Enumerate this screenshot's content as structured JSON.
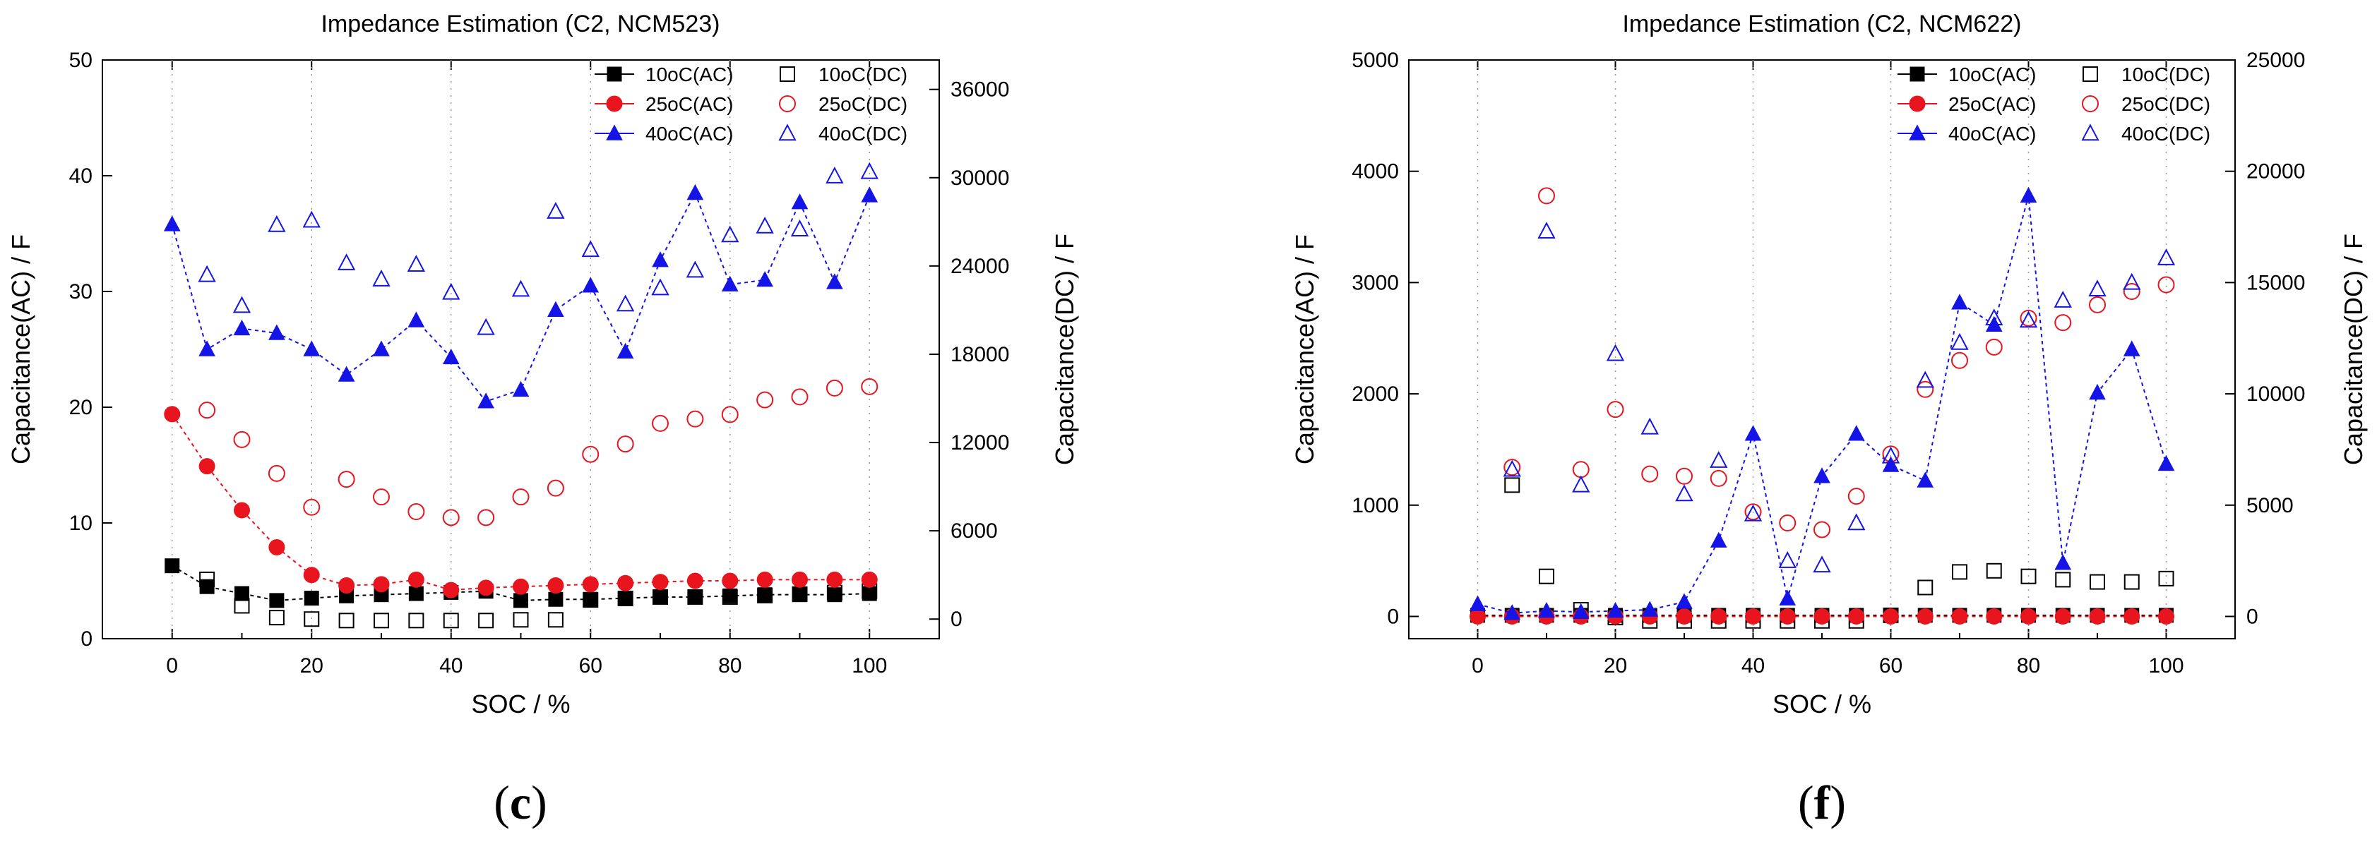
{
  "colors": {
    "black": "#000000",
    "red": "#e8141e",
    "blue": "#1414e6"
  },
  "chart_data": [
    {
      "type": "scatter",
      "panel": "(c)",
      "panel_letter": "c",
      "title": "Impedance Estimation (C2, NCM523)",
      "xlabel": "SOC / %",
      "ylabel_left": "Capacitance(AC) / F",
      "ylabel_right": "Capacitance(DC) / F",
      "xlim": [
        -10,
        110
      ],
      "ylim_left": [
        0,
        50
      ],
      "ylim_right": [
        -1333,
        38000
      ],
      "xticks": [
        0,
        20,
        40,
        60,
        80,
        100
      ],
      "yticks_left": [
        0,
        10,
        20,
        30,
        40,
        50
      ],
      "yticks_right": [
        0,
        6000,
        12000,
        18000,
        24000,
        30000,
        36000
      ],
      "legend_position": "top-right",
      "x": [
        0,
        5,
        10,
        15,
        20,
        25,
        30,
        35,
        40,
        45,
        50,
        55,
        60,
        65,
        70,
        75,
        80,
        85,
        90,
        95,
        100
      ],
      "series": [
        {
          "name": "10oC(AC)",
          "axis": "left",
          "color": "black",
          "marker": "square",
          "filled": true,
          "line": true,
          "values": [
            6.3,
            4.5,
            3.9,
            3.3,
            3.5,
            3.7,
            3.8,
            3.9,
            4.0,
            4.1,
            3.3,
            3.4,
            3.4,
            3.5,
            3.6,
            3.6,
            3.7,
            3.8,
            3.8,
            3.8,
            3.9
          ]
        },
        {
          "name": "10oC(DC)",
          "axis": "right",
          "color": "black",
          "marker": "square",
          "filled": false,
          "line": false,
          "values": [
            null,
            2700,
            900,
            100,
            0,
            -100,
            -100,
            -100,
            -100,
            -100,
            -50,
            -50,
            1300,
            1400,
            1500,
            1500,
            1500,
            1600,
            1700,
            1800,
            1900
          ]
        },
        {
          "name": "25oC(AC)",
          "axis": "left",
          "color": "red",
          "marker": "circle",
          "filled": true,
          "line": true,
          "values": [
            19.4,
            14.9,
            11.1,
            7.9,
            5.5,
            4.6,
            4.7,
            5.1,
            4.2,
            4.4,
            4.5,
            4.6,
            4.7,
            4.8,
            4.9,
            5.0,
            5.0,
            5.1,
            5.1,
            5.1,
            5.1
          ]
        },
        {
          "name": "25oC(DC)",
          "axis": "right",
          "color": "red",
          "marker": "circle",
          "filled": false,
          "line": false,
          "values": [
            null,
            14200,
            12200,
            9900,
            7600,
            9500,
            8300,
            7300,
            6900,
            6900,
            8300,
            8900,
            11200,
            11900,
            13300,
            13600,
            13900,
            14900,
            15100,
            15700,
            15800
          ]
        },
        {
          "name": "40oC(AC)",
          "axis": "left",
          "color": "blue",
          "marker": "triangle",
          "filled": true,
          "line": true,
          "values": [
            35.8,
            25.0,
            26.8,
            26.4,
            25.0,
            22.8,
            25.0,
            27.5,
            24.3,
            20.5,
            21.5,
            28.4,
            30.5,
            24.8,
            32.7,
            38.5,
            30.6,
            31.0,
            37.7,
            30.8,
            38.3
          ]
        },
        {
          "name": "40oC(DC)",
          "axis": "right",
          "color": "blue",
          "marker": "triangle",
          "filled": false,
          "line": false,
          "values": [
            null,
            23400,
            21300,
            26800,
            27100,
            24200,
            23100,
            24100,
            22200,
            19800,
            22400,
            27700,
            25100,
            21400,
            22500,
            23700,
            26100,
            26700,
            26500,
            30100,
            30400
          ]
        }
      ]
    },
    {
      "type": "scatter",
      "panel": "(f)",
      "panel_letter": "f",
      "title": "Impedance Estimation (C2, NCM622)",
      "xlabel": "SOC / %",
      "ylabel_left": "Capacitance(AC) / F",
      "ylabel_right": "Capacitance(DC) / F",
      "xlim": [
        -10,
        110
      ],
      "ylim_left": [
        -200,
        5000
      ],
      "ylim_right": [
        -1000,
        25000
      ],
      "xticks": [
        0,
        20,
        40,
        60,
        80,
        100
      ],
      "yticks_left": [
        0,
        1000,
        2000,
        3000,
        4000,
        5000
      ],
      "yticks_right": [
        0,
        5000,
        10000,
        15000,
        20000,
        25000
      ],
      "legend_position": "top-right",
      "x": [
        0,
        5,
        10,
        15,
        20,
        25,
        30,
        35,
        40,
        45,
        50,
        55,
        60,
        65,
        70,
        75,
        80,
        85,
        90,
        95,
        100
      ],
      "series": [
        {
          "name": "10oC(AC)",
          "axis": "left",
          "color": "black",
          "marker": "square",
          "filled": true,
          "line": true,
          "values": [
            10,
            10,
            10,
            10,
            10,
            10,
            10,
            10,
            10,
            10,
            10,
            10,
            10,
            10,
            10,
            10,
            10,
            10,
            10,
            10,
            10
          ]
        },
        {
          "name": "10oC(DC)",
          "axis": "right",
          "color": "black",
          "marker": "square",
          "filled": false,
          "line": false,
          "values": [
            null,
            5900,
            1800,
            300,
            -50,
            -200,
            -200,
            -200,
            -200,
            -200,
            -200,
            -200,
            50,
            1300,
            2000,
            2050,
            1800,
            1650,
            1550,
            1550,
            1700
          ]
        },
        {
          "name": "25oC(AC)",
          "axis": "left",
          "color": "red",
          "marker": "circle",
          "filled": true,
          "line": true,
          "values": [
            0,
            0,
            0,
            0,
            0,
            0,
            0,
            0,
            0,
            0,
            0,
            0,
            0,
            0,
            0,
            0,
            0,
            0,
            0,
            0,
            0
          ]
        },
        {
          "name": "25oC(DC)",
          "axis": "right",
          "color": "red",
          "marker": "circle",
          "filled": false,
          "line": false,
          "values": [
            null,
            6700,
            18900,
            6600,
            9300,
            6400,
            6300,
            6200,
            4700,
            4200,
            3900,
            5400,
            7300,
            10200,
            11500,
            12100,
            13400,
            13200,
            14000,
            14600,
            14900
          ]
        },
        {
          "name": "40oC(AC)",
          "axis": "left",
          "color": "blue",
          "marker": "triangle",
          "filled": true,
          "line": true,
          "values": [
            110,
            30,
            50,
            40,
            50,
            60,
            130,
            680,
            1640,
            160,
            1260,
            1640,
            1360,
            1220,
            2820,
            2620,
            3780,
            480,
            2010,
            2400,
            1370
          ]
        },
        {
          "name": "40oC(DC)",
          "axis": "right",
          "color": "blue",
          "marker": "triangle",
          "filled": false,
          "line": false,
          "values": [
            null,
            6600,
            17300,
            5900,
            11800,
            8500,
            5500,
            7000,
            4600,
            2500,
            2300,
            4200,
            7200,
            10600,
            12300,
            13400,
            13300,
            14200,
            14700,
            15000,
            16100
          ]
        }
      ]
    }
  ]
}
